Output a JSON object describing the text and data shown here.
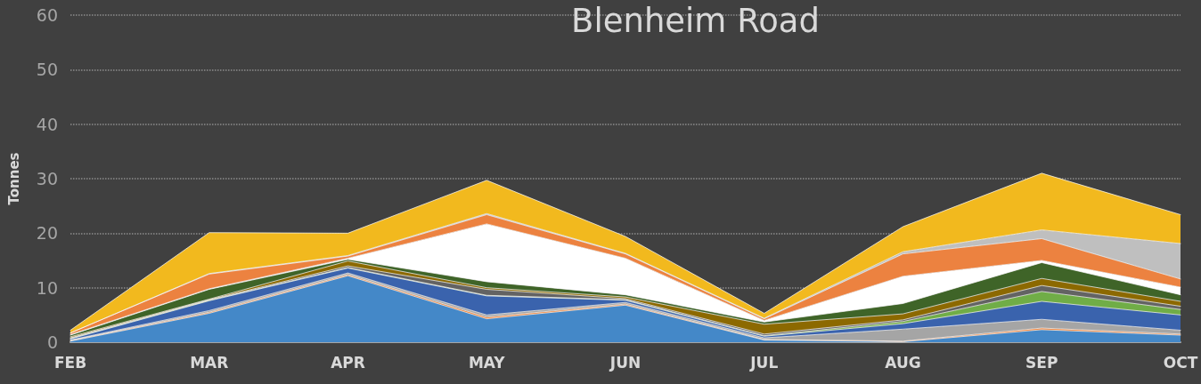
{
  "chart_data": {
    "type": "area",
    "title": "Blenheim Road",
    "ylabel": "Tonnes",
    "categories": [
      "FEB",
      "MAR",
      "APR",
      "MAY",
      "JUN",
      "JUL",
      "AUG",
      "SEP",
      "OCT"
    ],
    "stacked": true,
    "ylim": [
      0,
      60
    ],
    "yticks": [
      0,
      10,
      20,
      30,
      40,
      50,
      60
    ],
    "grid": "y",
    "series": [
      {
        "color": "#4488c8",
        "values": [
          0.2,
          5.3,
          12.2,
          4.3,
          6.8,
          0.4,
          0.1,
          2.3,
          1.3
        ]
      },
      {
        "color": "#ed7d31",
        "values": [
          0.1,
          0.2,
          0.2,
          0.3,
          0.2,
          0.1,
          0.1,
          0.3,
          0.2
        ]
      },
      {
        "color": "#a5a5a5",
        "values": [
          0.1,
          0.3,
          0.3,
          0.4,
          0.3,
          0.3,
          2.2,
          1.6,
          0.7
        ]
      },
      {
        "color": "#3a63ad",
        "values": [
          0.2,
          1.8,
          0.9,
          3.5,
          0.4,
          0.3,
          1.0,
          3.3,
          2.8
        ]
      },
      {
        "color": "#70ad47",
        "values": [
          0.1,
          0.1,
          0.1,
          0.1,
          0.1,
          0.1,
          0.4,
          1.8,
          1.0
        ]
      },
      {
        "color": "#636363",
        "values": [
          0.1,
          0.1,
          0.3,
          1.1,
          0.2,
          0.3,
          0.3,
          1.1,
          0.6
        ]
      },
      {
        "color": "#8c6900",
        "values": [
          0.2,
          0.1,
          0.9,
          0.3,
          0.3,
          1.8,
          1.1,
          1.3,
          0.9
        ]
      },
      {
        "color": "#3f6428",
        "values": [
          0.3,
          1.8,
          0.3,
          1.1,
          0.4,
          0.4,
          1.9,
          2.9,
          1.2
        ]
      },
      {
        "color": "#ffffff",
        "values": [
          0.1,
          0.1,
          0.2,
          10.6,
          6.7,
          0.3,
          5.0,
          0.4,
          1.4
        ]
      },
      {
        "color": "#ec8240",
        "values": [
          0.3,
          2.7,
          0.4,
          1.7,
          0.8,
          0.3,
          4.1,
          4.0,
          1.5
        ]
      },
      {
        "color": "#bfbfbf",
        "values": [
          0,
          0.1,
          0.1,
          0.2,
          0.1,
          0.1,
          0.4,
          1.6,
          6.5
        ]
      },
      {
        "color": "#f2b91e",
        "values": [
          0.5,
          7.5,
          4.1,
          6.1,
          3.1,
          0.9,
          4.6,
          10.4,
          5.3
        ]
      }
    ]
  }
}
